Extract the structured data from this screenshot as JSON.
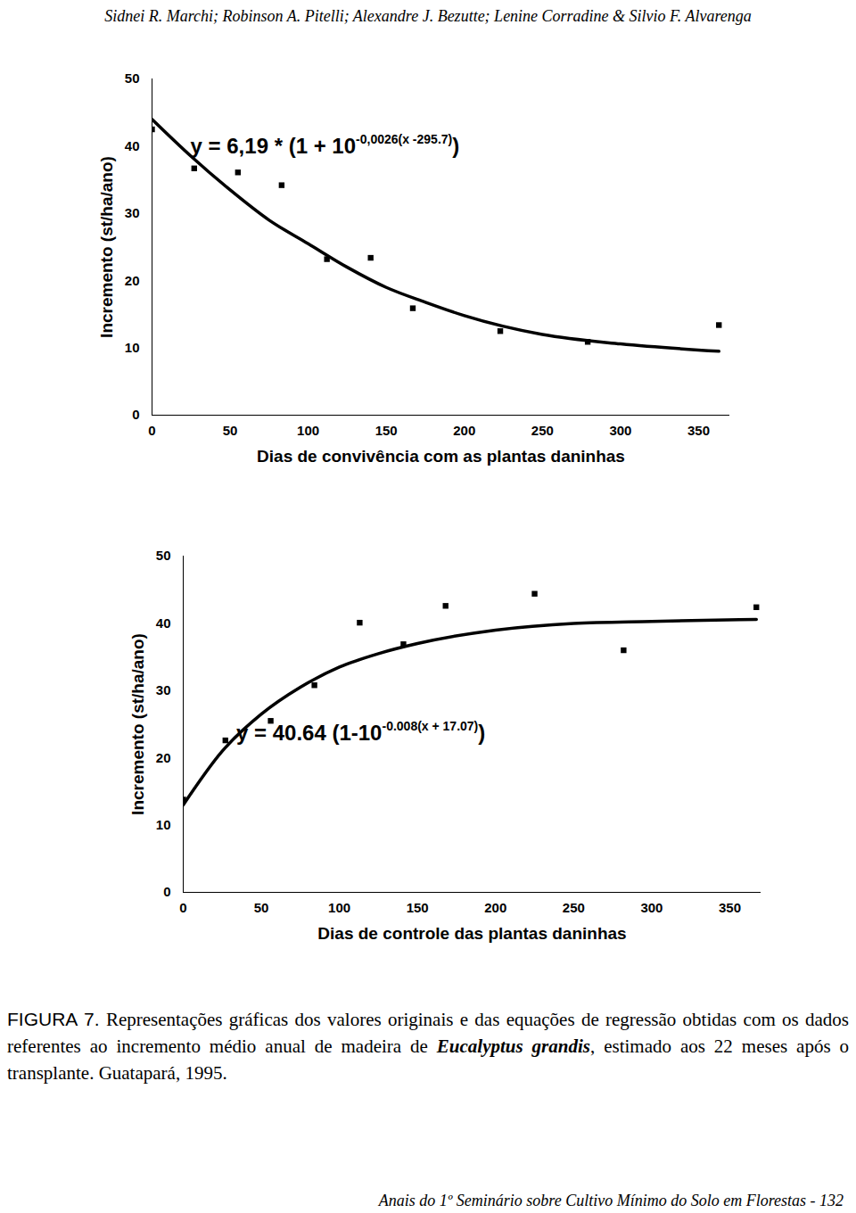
{
  "header": "Sidnei R. Marchi; Robinson A. Pitelli; Alexandre J. Bezutte; Lenine Corradine & Silvio F. Alvarenga",
  "chart_data": [
    {
      "type": "scatter",
      "x_label": "Dias de convivência com as plantas daninhas",
      "y_label": "Incremento (st/ha/ano)",
      "xlim": [
        0,
        370
      ],
      "xticks": [
        0,
        50,
        100,
        150,
        200,
        250,
        300,
        350
      ],
      "ylim": [
        0,
        50
      ],
      "yticks": [
        0,
        10,
        20,
        30,
        40,
        50
      ],
      "grid": false,
      "series": [
        {
          "type": "scatter",
          "marker": "square",
          "color": "#000000",
          "x": [
            0,
            27,
            55,
            83,
            112,
            140,
            167,
            223,
            279,
            363
          ],
          "values": [
            42.5,
            36.7,
            36.1,
            34.2,
            23.2,
            23.4,
            15.9,
            12.5,
            10.9,
            13.4
          ]
        },
        {
          "type": "line",
          "line_style": "solid",
          "color": "#000000",
          "x": [
            0,
            25,
            50,
            75,
            100,
            125,
            150,
            175,
            200,
            250,
            300,
            363
          ],
          "values": [
            44,
            38.5,
            33.5,
            29,
            25.5,
            22,
            19,
            16.8,
            14.8,
            12,
            10.6,
            9.5
          ]
        }
      ],
      "annotations": [
        {
          "text": "y = 6,19 * (1 + 10",
          "superscript": "-0,0026(x -295.7)",
          "text_end": ")"
        }
      ]
    },
    {
      "type": "scatter",
      "x_label": "Dias de controle das plantas daninhas",
      "y_label": "Incremento (st/ha/ano)",
      "xlim": [
        0,
        370
      ],
      "xticks": [
        0,
        50,
        100,
        150,
        200,
        250,
        300,
        350
      ],
      "ylim": [
        0,
        50
      ],
      "yticks": [
        0,
        10,
        20,
        30,
        40,
        50
      ],
      "grid": false,
      "series": [
        {
          "type": "scatter",
          "marker": "square",
          "color": "#000000",
          "x": [
            0,
            27,
            56,
            84,
            113,
            141,
            168,
            225,
            282,
            367
          ],
          "values": [
            13.8,
            22.6,
            25.5,
            30.8,
            40.1,
            36.9,
            42.6,
            44.4,
            36,
            42.4
          ]
        },
        {
          "type": "line",
          "line_style": "solid",
          "color": "#000000",
          "x": [
            0,
            25,
            50,
            75,
            100,
            125,
            150,
            200,
            250,
            300,
            367
          ],
          "values": [
            13,
            21,
            26.5,
            30.5,
            33.5,
            35.5,
            37,
            39,
            40,
            40.3,
            40.6
          ]
        }
      ],
      "annotations": [
        {
          "text": "y = 40.64 (1-10",
          "superscript": "-0.008(x + 17.07)",
          "text_end": ")"
        }
      ]
    }
  ],
  "caption": {
    "label": "FIGURA 7.",
    "text": " Representações gráficas dos valores originais e das equações de regressão obtidas com os dados referentes ao incremento médio anual de madeira de ",
    "species": "Eucalyptus grandis",
    "text_end": ", estimado aos 22 meses após o transplante. Guatapará, 1995."
  },
  "footer": "Anais do 1º Seminário sobre Cultivo Mínimo do Solo em Florestas - 132"
}
